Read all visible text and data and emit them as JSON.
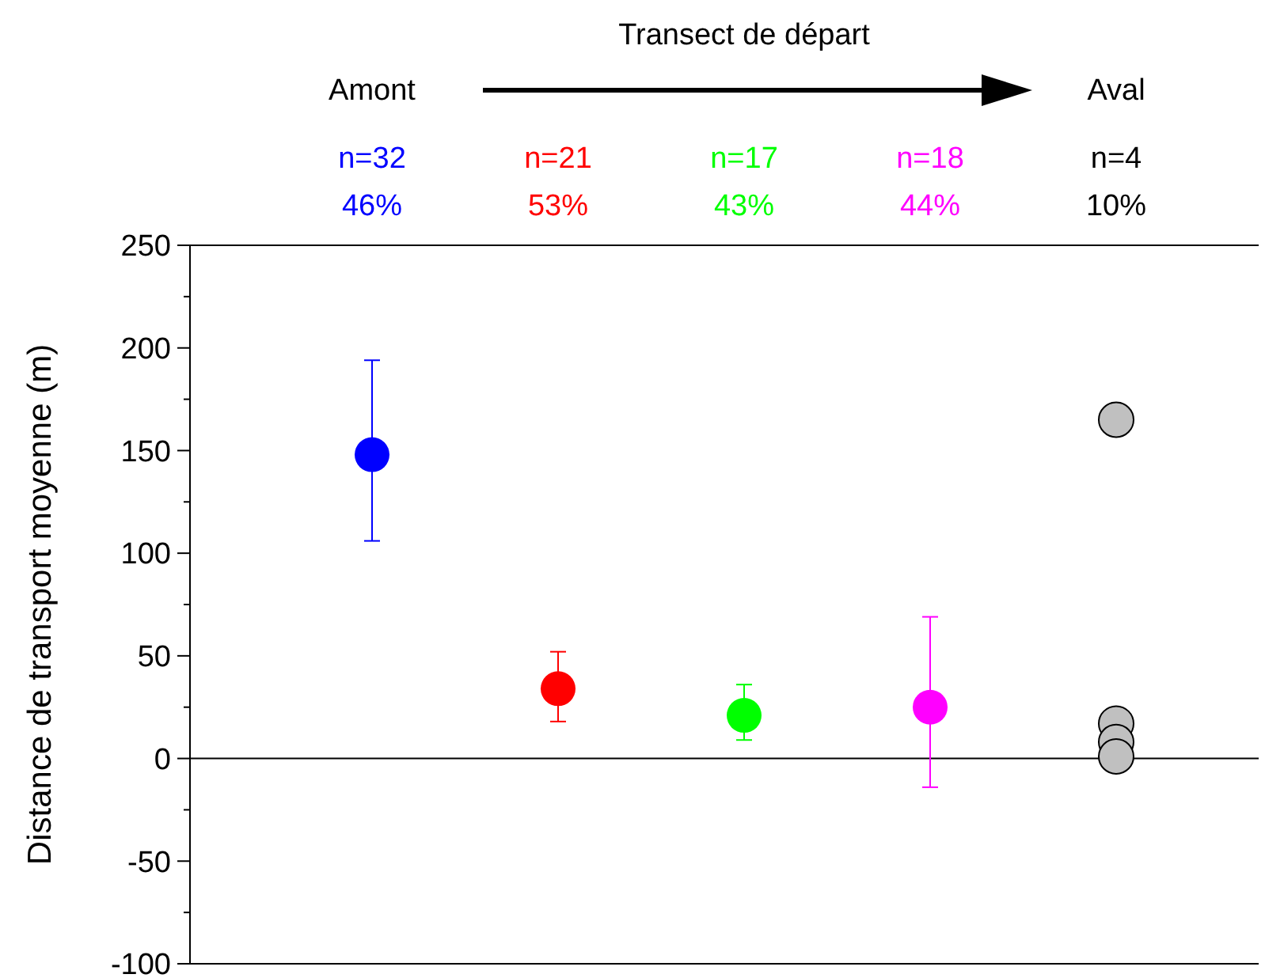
{
  "chart_data": {
    "type": "scatter",
    "ylabel": "Distance de transport moyenne (m)",
    "annotations": [
      "Transect de départ",
      "Amont",
      "Aval",
      "n=32",
      "46%",
      "n=21",
      "53%",
      "n=17",
      "43%",
      "n=18",
      "44%",
      "n=4",
      "10%"
    ],
    "categories": [
      null,
      null,
      null,
      null,
      null
    ],
    "ylim": [
      -100,
      250
    ],
    "yticks": [
      -100,
      {
        "value": -75,
        "label": null
      },
      -50,
      {
        "value": -25,
        "label": null
      },
      0,
      {
        "value": 25,
        "label": null
      },
      50,
      {
        "value": 75,
        "label": null
      },
      100,
      {
        "value": 125,
        "label": null
      },
      150,
      {
        "value": 175,
        "label": null
      },
      200,
      {
        "value": 225,
        "label": null
      },
      250
    ],
    "tick_labels": "y",
    "marker": "circle",
    "ref_lines": [
      {
        "axis": "y",
        "value": 0
      }
    ],
    "series": [
      {
        "color": "#0000ff",
        "values": [
          148,
          null,
          null,
          null,
          null
        ],
        "errors": [
          [
            106,
            194
          ],
          null,
          null,
          null,
          null
        ]
      },
      {
        "color": "#ff0000",
        "values": [
          null,
          34,
          null,
          null,
          null
        ],
        "errors": [
          null,
          [
            18,
            52
          ],
          null,
          null,
          null
        ]
      },
      {
        "color": "#00ff00",
        "values": [
          null,
          null,
          21,
          null,
          null
        ],
        "errors": [
          null,
          null,
          [
            9,
            36
          ],
          null,
          null
        ]
      },
      {
        "color": "#ff00ff",
        "values": [
          null,
          null,
          null,
          25,
          null
        ],
        "errors": [
          null,
          null,
          null,
          [
            -14,
            69
          ],
          null
        ]
      },
      {
        "color": "#c0c0c0",
        "values": [
          null,
          null,
          null,
          null,
          165
        ]
      },
      {
        "color": "#c0c0c0",
        "values": [
          null,
          null,
          null,
          null,
          17
        ]
      },
      {
        "color": "#c0c0c0",
        "values": [
          null,
          null,
          null,
          null,
          8
        ]
      },
      {
        "color": "#c0c0c0",
        "values": [
          null,
          null,
          null,
          null,
          1
        ]
      }
    ]
  }
}
